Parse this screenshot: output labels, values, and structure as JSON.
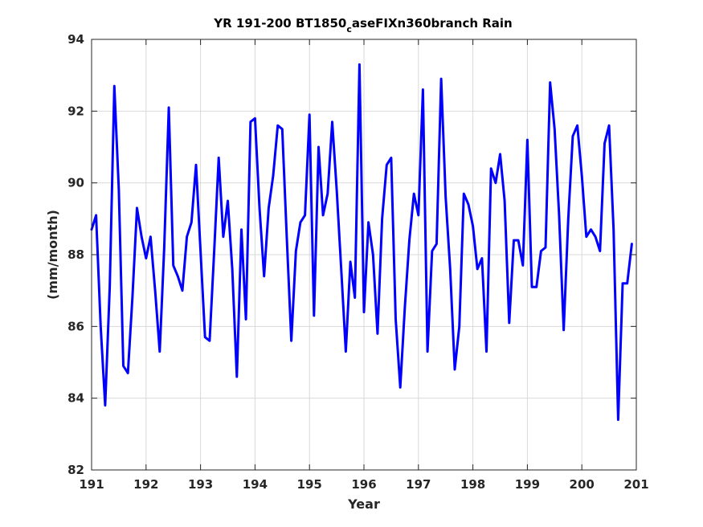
{
  "chart_data": {
    "type": "line",
    "title_parts": {
      "before": "YR 191-200 BT1850",
      "sub": "c",
      "after": "aseFIXn360branch Rain"
    },
    "xlabel": "Year",
    "ylabel": "(mm/month)",
    "xlim": [
      191,
      201
    ],
    "ylim": [
      82,
      94
    ],
    "xticks": [
      191,
      192,
      193,
      194,
      195,
      196,
      197,
      198,
      199,
      200,
      201
    ],
    "yticks": [
      82,
      84,
      86,
      88,
      90,
      92,
      94
    ],
    "xtick_labels": [
      "191",
      "192",
      "193",
      "194",
      "195",
      "196",
      "197",
      "198",
      "199",
      "200",
      "201"
    ],
    "ytick_labels": [
      "82",
      "84",
      "86",
      "88",
      "90",
      "92",
      "94"
    ],
    "grid": true,
    "series": [
      {
        "color": "#0000ff",
        "x": [
          191.0,
          191.083,
          191.167,
          191.25,
          191.333,
          191.417,
          191.5,
          191.583,
          191.667,
          191.75,
          191.833,
          191.917,
          192.0,
          192.083,
          192.167,
          192.25,
          192.333,
          192.417,
          192.5,
          192.583,
          192.667,
          192.75,
          192.833,
          192.917,
          193.0,
          193.083,
          193.167,
          193.25,
          193.333,
          193.417,
          193.5,
          193.583,
          193.667,
          193.75,
          193.833,
          193.917,
          194.0,
          194.083,
          194.167,
          194.25,
          194.333,
          194.417,
          194.5,
          194.583,
          194.667,
          194.75,
          194.833,
          194.917,
          195.0,
          195.083,
          195.167,
          195.25,
          195.333,
          195.417,
          195.5,
          195.583,
          195.667,
          195.75,
          195.833,
          195.917,
          196.0,
          196.083,
          196.167,
          196.25,
          196.333,
          196.417,
          196.5,
          196.583,
          196.667,
          196.75,
          196.833,
          196.917,
          197.0,
          197.083,
          197.167,
          197.25,
          197.333,
          197.417,
          197.5,
          197.583,
          197.667,
          197.75,
          197.833,
          197.917,
          198.0,
          198.083,
          198.167,
          198.25,
          198.333,
          198.417,
          198.5,
          198.583,
          198.667,
          198.75,
          198.833,
          198.917,
          199.0,
          199.083,
          199.167,
          199.25,
          199.333,
          199.417,
          199.5,
          199.583,
          199.667,
          199.75,
          199.833,
          199.917,
          200.0,
          200.083,
          200.167,
          200.25,
          200.333,
          200.417,
          200.5,
          200.583,
          200.667,
          200.75,
          200.833,
          200.917
        ],
        "y": [
          88.7,
          89.1,
          86.0,
          83.8,
          87.1,
          92.7,
          89.8,
          84.9,
          84.7,
          86.8,
          89.3,
          88.5,
          87.9,
          88.5,
          87.0,
          85.3,
          88.2,
          92.1,
          87.7,
          87.4,
          87.0,
          88.5,
          88.9,
          90.5,
          88.1,
          85.7,
          85.6,
          88.1,
          90.7,
          88.5,
          89.5,
          87.6,
          84.6,
          88.7,
          86.2,
          91.7,
          91.8,
          89.3,
          87.4,
          89.3,
          90.2,
          91.6,
          91.5,
          88.5,
          85.6,
          88.1,
          88.9,
          89.1,
          91.9,
          86.3,
          91.0,
          89.1,
          89.7,
          91.7,
          89.8,
          87.6,
          85.3,
          87.8,
          86.8,
          93.3,
          86.4,
          88.9,
          88.0,
          85.8,
          89.0,
          90.5,
          90.7,
          86.2,
          84.3,
          86.5,
          88.4,
          89.7,
          89.1,
          92.6,
          85.3,
          88.1,
          88.3,
          92.9,
          89.6,
          87.6,
          84.8,
          86.0,
          89.7,
          89.4,
          88.8,
          87.6,
          87.9,
          85.3,
          90.4,
          90.0,
          90.8,
          89.5,
          86.1,
          88.4,
          88.4,
          87.7,
          91.2,
          87.1,
          87.1,
          88.1,
          88.2,
          92.8,
          91.5,
          89.1,
          85.9,
          89.0,
          91.3,
          91.6,
          90.2,
          88.5,
          88.7,
          88.5,
          88.1,
          91.1,
          91.6,
          88.7,
          83.4,
          87.2,
          87.2,
          88.3
        ]
      }
    ]
  }
}
